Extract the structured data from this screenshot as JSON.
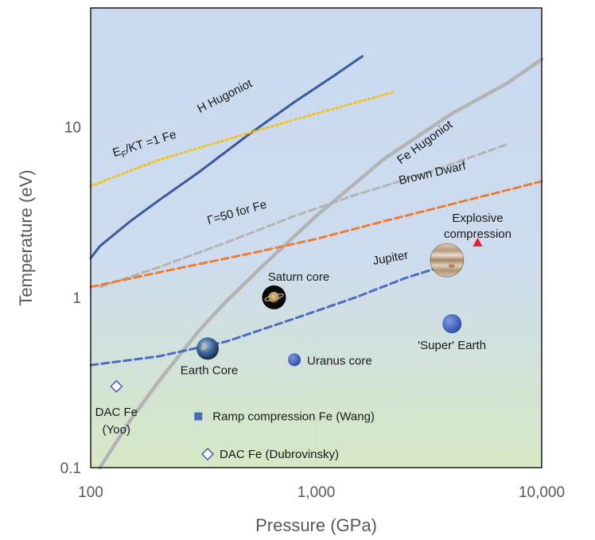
{
  "chart_data": {
    "type": "line",
    "xlabel": "Pressure (GPa)",
    "ylabel": "Temperature (eV)",
    "xscale": "log",
    "yscale": "log",
    "xlim": [
      100,
      10000
    ],
    "ylim": [
      0.1,
      50
    ],
    "x_ticks": [
      {
        "value": 100,
        "label": "100"
      },
      {
        "value": 1000,
        "label": "1,000"
      },
      {
        "value": 10000,
        "label": "10,000"
      }
    ],
    "y_ticks": [
      {
        "value": 0.1,
        "label": "0.1"
      },
      {
        "value": 1,
        "label": "1"
      },
      {
        "value": 10,
        "label": "10"
      }
    ],
    "grid": true,
    "background": "gradient blue (top) to green (bottom)",
    "series": [
      {
        "name": "H Hugoniot",
        "color": "#3a5a9c",
        "style": "solid",
        "label_at": [
          400,
          14.5
        ],
        "label_angle": -27,
        "x": [
          100,
          110,
          150,
          200,
          300,
          500,
          800,
          1200,
          1600
        ],
        "y": [
          1.7,
          2.0,
          2.8,
          3.7,
          5.4,
          9.0,
          14.0,
          20.0,
          26.0
        ]
      },
      {
        "name": "EF/KT =1 Fe",
        "label_parts": {
          "base": "E",
          "sub": "F",
          "rest": "/KT =1 Fe"
        },
        "color": "#f2c21c",
        "style": "dotted",
        "label_at": [
          175,
          7.6
        ],
        "label_angle": -17,
        "x": [
          100,
          200,
          500,
          1000,
          2200
        ],
        "y": [
          4.5,
          6.4,
          9.2,
          12.0,
          16.0
        ]
      },
      {
        "name": "Fe Hugoniot",
        "color": "#b3b3b3",
        "style": "solid",
        "label_at": [
          3100,
          7.8
        ],
        "label_angle": -36,
        "x": [
          110,
          150,
          200,
          300,
          400,
          600,
          1000,
          2000,
          4000,
          7000,
          10000
        ],
        "y": [
          0.1,
          0.19,
          0.32,
          0.63,
          0.95,
          1.6,
          3.0,
          6.5,
          12.0,
          18.0,
          25.0
        ]
      },
      {
        "name": "Γ=50 for Fe",
        "color": "#b3b3b3",
        "style": "dashed",
        "label_at": [
          450,
          3.0
        ],
        "label_angle": -16,
        "x": [
          110,
          200,
          400,
          800,
          1500,
          3000,
          7000
        ],
        "y": [
          1.15,
          1.5,
          2.1,
          3.0,
          4.0,
          5.3,
          7.9
        ]
      },
      {
        "name": "Brown Dwarf",
        "color": "#ed7d31",
        "style": "dashed",
        "label_at": [
          3300,
          5.1
        ],
        "label_angle": -13,
        "x": [
          100,
          200,
          500,
          1000,
          2000,
          5000,
          10000
        ],
        "y": [
          1.15,
          1.4,
          1.8,
          2.2,
          2.8,
          3.8,
          4.8
        ]
      },
      {
        "name": "Jupiter",
        "color": "#4b6cc1",
        "style": "dashed",
        "label_at": [
          2150,
          1.62
        ],
        "label_angle": -10,
        "x": [
          100,
          200,
          400,
          800,
          1500,
          2500,
          3800
        ],
        "y": [
          0.4,
          0.45,
          0.55,
          0.75,
          1.0,
          1.3,
          1.55
        ]
      }
    ],
    "points": [
      {
        "name": "DAC Fe (Yoo)",
        "label_lines": [
          "DAC Fe",
          "(Yoo)"
        ],
        "marker": "diamond-open",
        "color": "#4b5fb0",
        "x": 130,
        "y": 0.3
      },
      {
        "name": "Ramp compression Fe (Wang)",
        "marker": "square",
        "color": "#4a6ab4",
        "x": 300,
        "y": 0.2
      },
      {
        "name": "DAC Fe (Dubrovinsky)",
        "marker": "diamond-open",
        "color": "#4b5fb0",
        "x": 330,
        "y": 0.12
      },
      {
        "name": "Explosive compression",
        "label_lines": [
          "Explosive",
          "compression"
        ],
        "marker": "triangle",
        "color": "#e0202a",
        "x": 5200,
        "y": 2.1
      },
      {
        "name": "Earth Core",
        "marker": "planet-earth",
        "x": 330,
        "y": 0.5
      },
      {
        "name": "Saturn core",
        "marker": "planet-saturn",
        "x": 650,
        "y": 1.0
      },
      {
        "name": "Uranus core",
        "marker": "planet-small",
        "color": "#3c5fbf",
        "x": 800,
        "y": 0.43
      },
      {
        "name": "'Super' Earth",
        "marker": "planet-small",
        "color": "#4466c8",
        "x": 4000,
        "y": 0.7
      },
      {
        "name": "Jupiter planet",
        "marker": "planet-jupiter",
        "x": 3800,
        "y": 1.65
      }
    ]
  }
}
